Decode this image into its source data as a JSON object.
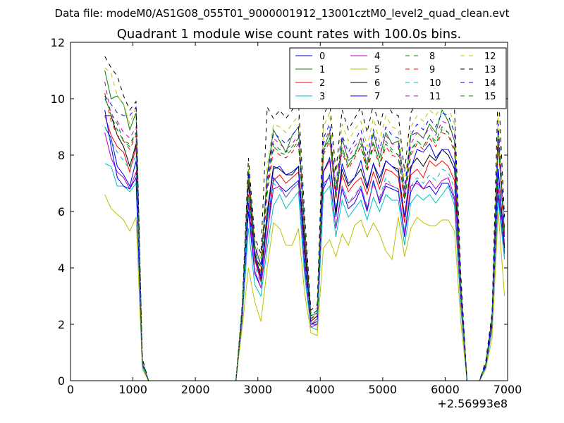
{
  "suptitle": "Data file: modeM0/AS1G08_055T01_9000001912_13001cztM0_level2_quad_clean.evt",
  "chart_data": {
    "type": "line",
    "title": "Quadrant 1 module wise count rates with 100.0s bins.",
    "xlabel": "",
    "ylabel": "",
    "x_offset_label": "+2.56993e8",
    "xlim": [
      0,
      7000
    ],
    "ylim": [
      0,
      12
    ],
    "xticks": [
      0,
      1000,
      2000,
      3000,
      4000,
      5000,
      6000,
      7000
    ],
    "yticks": [
      0,
      2,
      4,
      6,
      8,
      10,
      12
    ],
    "grid": false,
    "legend_position": "top-right",
    "x": [
      550,
      650,
      750,
      850,
      950,
      1050,
      1150,
      1250,
      1350,
      1450,
      1550,
      1650,
      1750,
      1850,
      1950,
      2050,
      2150,
      2250,
      2350,
      2450,
      2550,
      2650,
      2750,
      2850,
      2950,
      3050,
      3150,
      3250,
      3350,
      3450,
      3550,
      3650,
      3750,
      3850,
      3950,
      4050,
      4150,
      4250,
      4350,
      4450,
      4550,
      4650,
      4750,
      4850,
      4950,
      5050,
      5150,
      5250,
      5350,
      5450,
      5550,
      5650,
      5750,
      5850,
      5950,
      6050,
      6150,
      6250,
      6350,
      6450,
      6550,
      6650,
      6750,
      6850,
      6950
    ],
    "series": [
      {
        "name": "0",
        "color": "#0000ff",
        "dash": "solid",
        "values": [
          9.0,
          8.6,
          7.6,
          7.3,
          6.9,
          7.8,
          0.6,
          0,
          0,
          0,
          0,
          0,
          0,
          0,
          0,
          0,
          0,
          0,
          0,
          0,
          0,
          0,
          2.3,
          6.0,
          3.8,
          3.3,
          5.1,
          7.2,
          6.9,
          6.7,
          6.9,
          7.1,
          4.0,
          2.0,
          2.0,
          6.8,
          7.3,
          5.4,
          6.8,
          6.1,
          6.3,
          6.8,
          6.0,
          7.1,
          6.3,
          6.9,
          6.8,
          6.7,
          5.1,
          6.7,
          7.1,
          6.8,
          6.9,
          6.6,
          7.0,
          7.0,
          6.4,
          2.8,
          0,
          0,
          0,
          0.5,
          2.0,
          6.6,
          4.5
        ]
      },
      {
        "name": "1",
        "color": "#008000",
        "dash": "solid",
        "values": [
          11.0,
          10.0,
          10.1,
          9.8,
          8.9,
          9.5,
          0.7,
          0,
          0,
          0,
          0,
          0,
          0,
          0,
          0,
          0,
          0,
          0,
          0,
          0,
          0,
          0,
          2.5,
          7.5,
          4.8,
          4.1,
          7.3,
          8.9,
          8.5,
          8.1,
          8.7,
          9.0,
          5.4,
          2.3,
          2.4,
          8.2,
          8.8,
          6.6,
          8.6,
          7.8,
          8.0,
          8.6,
          7.6,
          8.8,
          7.9,
          8.8,
          8.4,
          8.5,
          6.5,
          8.7,
          8.8,
          8.6,
          9.1,
          8.8,
          9.6,
          9.2,
          8.5,
          3.3,
          0,
          0,
          0,
          0.6,
          2.2,
          8.4,
          5.2
        ]
      },
      {
        "name": "2",
        "color": "#ff0000",
        "dash": "solid",
        "values": [
          9.4,
          8.7,
          8.3,
          8.1,
          7.4,
          8.3,
          0.6,
          0,
          0,
          0,
          0,
          0,
          0,
          0,
          0,
          0,
          0,
          0,
          0,
          0,
          0,
          0,
          2.4,
          6.6,
          4.3,
          3.5,
          5.6,
          7.1,
          7.3,
          7.0,
          7.2,
          7.4,
          4.6,
          2.0,
          2.2,
          7.4,
          7.8,
          5.9,
          7.3,
          6.7,
          7.0,
          7.2,
          6.6,
          7.4,
          6.8,
          7.5,
          7.4,
          7.2,
          5.6,
          7.3,
          7.5,
          7.2,
          7.8,
          7.6,
          7.8,
          7.6,
          7.1,
          3.0,
          0,
          0,
          0,
          0.5,
          2.0,
          7.0,
          4.6
        ]
      },
      {
        "name": "3",
        "color": "#00bfbf",
        "dash": "solid",
        "values": [
          7.7,
          7.6,
          6.9,
          6.9,
          6.7,
          7.0,
          0.5,
          0,
          0,
          0,
          0,
          0,
          0,
          0,
          0,
          0,
          0,
          0,
          0,
          0,
          0,
          0,
          2.1,
          5.4,
          3.4,
          3.0,
          4.7,
          6.2,
          6.6,
          6.1,
          6.4,
          6.7,
          3.7,
          1.9,
          1.8,
          6.6,
          6.9,
          5.1,
          6.4,
          5.8,
          6.1,
          6.4,
          5.7,
          6.5,
          6.0,
          6.6,
          6.4,
          6.4,
          4.8,
          6.3,
          6.6,
          6.4,
          6.6,
          6.3,
          6.6,
          6.9,
          6.2,
          2.6,
          0,
          0,
          0,
          0.4,
          1.8,
          6.4,
          4.3
        ]
      },
      {
        "name": "4",
        "color": "#bf00bf",
        "dash": "solid",
        "values": [
          8.8,
          7.9,
          7.4,
          7.2,
          6.8,
          7.4,
          0.6,
          0,
          0,
          0,
          0,
          0,
          0,
          0,
          0,
          0,
          0,
          0,
          0,
          0,
          0,
          0,
          2.2,
          6.3,
          3.9,
          3.3,
          5.2,
          6.8,
          6.9,
          6.5,
          6.8,
          7.0,
          4.2,
          1.9,
          2.0,
          7.0,
          7.2,
          5.4,
          6.9,
          6.3,
          6.5,
          6.9,
          6.1,
          7.0,
          6.4,
          7.0,
          6.9,
          6.8,
          5.2,
          6.9,
          7.0,
          6.8,
          7.1,
          6.8,
          7.1,
          7.2,
          6.5,
          2.8,
          0,
          0,
          0,
          0.5,
          1.9,
          6.9,
          4.5
        ]
      },
      {
        "name": "5",
        "color": "#bfbf00",
        "dash": "solid",
        "values": [
          6.6,
          6.1,
          5.9,
          5.7,
          5.3,
          5.8,
          0.4,
          0,
          0,
          0,
          0,
          0,
          0,
          0,
          0,
          0,
          0,
          0,
          0,
          0,
          0,
          0,
          1.9,
          4.0,
          2.8,
          2.1,
          4.0,
          5.6,
          5.4,
          4.8,
          4.8,
          5.4,
          3.1,
          1.7,
          1.6,
          4.7,
          5.0,
          4.4,
          5.2,
          4.8,
          5.5,
          5.7,
          5.1,
          5.6,
          5.2,
          4.6,
          4.3,
          5.8,
          4.4,
          5.4,
          5.8,
          5.6,
          5.5,
          5.5,
          5.7,
          5.7,
          5.3,
          2.1,
          0,
          0,
          0,
          0.4,
          1.5,
          6.0,
          3.0
        ]
      },
      {
        "name": "6",
        "color": "#000000",
        "dash": "solid",
        "values": [
          9.4,
          9.4,
          8.7,
          8.3,
          7.6,
          8.4,
          0.6,
          0,
          0,
          0,
          0,
          0,
          0,
          0,
          0,
          0,
          0,
          0,
          0,
          0,
          0,
          0,
          2.4,
          7.0,
          4.5,
          3.7,
          6.0,
          7.6,
          7.5,
          7.3,
          7.3,
          7.6,
          4.9,
          2.1,
          2.3,
          7.4,
          7.9,
          6.0,
          7.5,
          6.9,
          7.2,
          7.5,
          6.8,
          7.7,
          7.0,
          7.8,
          7.6,
          7.5,
          5.8,
          7.6,
          7.9,
          7.6,
          8.0,
          7.8,
          8.2,
          8.0,
          7.5,
          3.1,
          0,
          0,
          0,
          0.5,
          2.0,
          7.5,
          4.7
        ]
      },
      {
        "name": "7",
        "color": "#0000ff",
        "dash": "solid",
        "values": [
          9.6,
          8.3,
          7.2,
          6.9,
          6.8,
          7.2,
          0.6,
          0,
          0,
          0,
          0,
          0,
          0,
          0,
          0,
          0,
          0,
          0,
          0,
          0,
          0,
          0,
          2.4,
          6.3,
          4.4,
          3.6,
          5.8,
          7.5,
          7.6,
          7.3,
          7.4,
          7.6,
          4.4,
          2.0,
          2.1,
          7.4,
          7.9,
          5.8,
          7.7,
          7.0,
          7.2,
          7.8,
          6.9,
          7.7,
          7.2,
          7.8,
          7.6,
          7.4,
          5.8,
          7.5,
          8.2,
          8.1,
          8.4,
          7.9,
          8.2,
          8.2,
          7.7,
          3.1,
          0,
          0,
          0,
          0.5,
          2.1,
          7.5,
          4.8
        ]
      },
      {
        "name": "8",
        "color": "#008000",
        "dash": "dashed",
        "values": [
          10.0,
          9.5,
          9.1,
          8.5,
          8.3,
          8.8,
          0.7,
          0,
          0,
          0,
          0,
          0,
          0,
          0,
          0,
          0,
          0,
          0,
          0,
          0,
          0,
          0,
          2.6,
          7.3,
          4.6,
          4.0,
          6.9,
          8.4,
          8.2,
          8.1,
          8.3,
          8.6,
          5.2,
          2.3,
          2.4,
          8.2,
          8.6,
          6.6,
          8.3,
          7.6,
          8.1,
          8.4,
          7.5,
          8.5,
          7.7,
          8.5,
          8.2,
          8.0,
          6.4,
          8.2,
          8.5,
          8.3,
          8.7,
          8.5,
          9.0,
          8.8,
          8.2,
          3.3,
          0,
          0,
          0,
          0.6,
          2.2,
          8.6,
          5.1
        ]
      },
      {
        "name": "9",
        "color": "#ff0000",
        "dash": "dashed",
        "values": [
          10.2,
          9.2,
          8.7,
          8.5,
          8.2,
          8.7,
          0.6,
          0,
          0,
          0,
          0,
          0,
          0,
          0,
          0,
          0,
          0,
          0,
          0,
          0,
          0,
          0,
          2.5,
          7.1,
          4.6,
          3.8,
          6.6,
          8.2,
          8.0,
          7.9,
          8.1,
          8.4,
          5.1,
          2.2,
          2.3,
          8.0,
          8.5,
          6.4,
          8.1,
          7.5,
          7.9,
          8.3,
          7.4,
          8.3,
          7.6,
          8.3,
          8.0,
          7.9,
          6.3,
          8.0,
          8.4,
          8.2,
          8.6,
          8.3,
          8.8,
          8.7,
          8.1,
          3.2,
          0,
          0,
          0,
          0.6,
          2.1,
          8.4,
          5.0
        ]
      },
      {
        "name": "10",
        "color": "#00bfbf",
        "dash": "dashed",
        "values": [
          9.0,
          8.5,
          8.1,
          7.8,
          7.5,
          8.0,
          0.6,
          0,
          0,
          0,
          0,
          0,
          0,
          0,
          0,
          0,
          0,
          0,
          0,
          0,
          0,
          0,
          2.3,
          6.5,
          4.1,
          3.4,
          5.6,
          7.0,
          6.8,
          6.5,
          6.8,
          7.0,
          4.3,
          2.0,
          2.1,
          6.9,
          7.3,
          5.5,
          6.9,
          6.3,
          6.6,
          6.9,
          6.2,
          7.0,
          6.5,
          7.2,
          6.9,
          6.8,
          5.3,
          6.9,
          7.2,
          7.0,
          7.3,
          7.1,
          7.5,
          7.4,
          6.8,
          2.9,
          0,
          0,
          0,
          0.5,
          1.9,
          7.0,
          4.4
        ]
      },
      {
        "name": "11",
        "color": "#bf00bf",
        "dash": "dashed",
        "values": [
          10.6,
          9.4,
          9.2,
          8.8,
          8.6,
          9.0,
          0.7,
          0,
          0,
          0,
          0,
          0,
          0,
          0,
          0,
          0,
          0,
          0,
          0,
          0,
          0,
          0,
          2.6,
          7.3,
          4.7,
          4.1,
          7.0,
          8.6,
          8.4,
          8.2,
          8.4,
          8.7,
          5.3,
          2.3,
          2.5,
          8.4,
          8.9,
          6.7,
          8.5,
          7.9,
          8.3,
          8.6,
          7.8,
          8.7,
          8.0,
          8.7,
          8.4,
          8.3,
          6.6,
          8.4,
          8.8,
          8.6,
          9.0,
          8.7,
          9.2,
          9.1,
          8.5,
          3.4,
          0,
          0,
          0,
          0.6,
          2.2,
          8.9,
          5.3
        ]
      },
      {
        "name": "12",
        "color": "#bfbf00",
        "dash": "dashed",
        "values": [
          11.1,
          10.9,
          10.1,
          9.8,
          9.1,
          9.7,
          0.7,
          0,
          0,
          0,
          0,
          0,
          0,
          0,
          0,
          0,
          0,
          0,
          0,
          0,
          0,
          0,
          2.6,
          7.7,
          5.0,
          4.3,
          7.6,
          9.1,
          9.0,
          8.8,
          9.1,
          9.4,
          5.6,
          2.4,
          2.6,
          9.0,
          9.5,
          7.1,
          9.1,
          8.5,
          8.9,
          9.2,
          8.3,
          9.3,
          8.5,
          9.4,
          9.0,
          8.9,
          7.0,
          9.0,
          9.4,
          9.2,
          9.6,
          9.4,
          9.8,
          9.7,
          9.1,
          3.6,
          0,
          0,
          0,
          0.6,
          2.3,
          9.5,
          5.6
        ]
      },
      {
        "name": "13",
        "color": "#000000",
        "dash": "dashed",
        "values": [
          11.5,
          11.1,
          10.8,
          10.1,
          9.6,
          9.9,
          0.8,
          0,
          0,
          0,
          0,
          0,
          0,
          0,
          0,
          0,
          0,
          0,
          0,
          0,
          0,
          0,
          2.7,
          7.9,
          5.1,
          4.5,
          9.7,
          9.3,
          9.6,
          9.3,
          9.6,
          9.9,
          5.9,
          2.5,
          2.7,
          9.4,
          9.9,
          7.4,
          9.6,
          8.9,
          9.3,
          9.7,
          8.8,
          9.8,
          9.0,
          9.9,
          9.5,
          9.4,
          7.4,
          9.5,
          9.9,
          9.7,
          10.1,
          9.8,
          10.3,
          10.2,
          9.6,
          3.8,
          0,
          0,
          0,
          0.7,
          2.4,
          10.5,
          5.8
        ]
      },
      {
        "name": "14",
        "color": "#0000ff",
        "dash": "dashed",
        "values": [
          10.1,
          9.8,
          9.5,
          9.4,
          9.4,
          9.7,
          0.7,
          0,
          0,
          0,
          0,
          0,
          0,
          0,
          0,
          0,
          0,
          0,
          0,
          0,
          0,
          0,
          2.6,
          7.4,
          4.8,
          4.1,
          7.2,
          8.8,
          8.6,
          8.4,
          8.7,
          9.0,
          5.4,
          2.3,
          2.5,
          8.6,
          9.1,
          6.8,
          8.7,
          8.1,
          8.5,
          8.9,
          8.0,
          8.9,
          8.2,
          9.0,
          8.7,
          8.6,
          6.8,
          8.7,
          9.1,
          8.9,
          9.3,
          9.0,
          9.5,
          9.4,
          8.8,
          3.5,
          0,
          0,
          0,
          0.6,
          2.3,
          9.1,
          5.4
        ]
      },
      {
        "name": "15",
        "color": "#008000",
        "dash": "dashed",
        "values": [
          10.1,
          9.4,
          8.9,
          8.5,
          8.4,
          8.8,
          0.7,
          0,
          0,
          0,
          0,
          0,
          0,
          0,
          0,
          0,
          0,
          0,
          0,
          0,
          0,
          0,
          2.5,
          7.2,
          4.6,
          3.9,
          6.8,
          8.3,
          8.1,
          8.0,
          8.2,
          8.5,
          5.2,
          2.2,
          2.4,
          8.1,
          8.6,
          6.5,
          8.2,
          7.6,
          8.0,
          8.3,
          7.5,
          8.4,
          7.7,
          8.4,
          8.1,
          8.0,
          6.4,
          8.1,
          8.5,
          8.3,
          8.7,
          8.4,
          8.9,
          8.8,
          8.2,
          3.3,
          0,
          0,
          0,
          0.6,
          2.2,
          8.7,
          5.1
        ]
      }
    ]
  }
}
